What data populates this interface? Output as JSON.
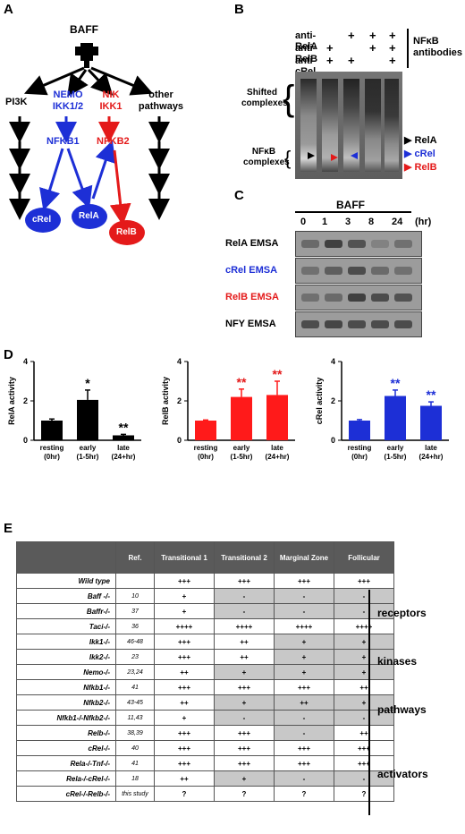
{
  "panels": {
    "A": "A",
    "B": "B",
    "C": "C",
    "D": "D",
    "E": "E"
  },
  "pathway": {
    "baff": "BAFF",
    "pi3k": "PI3K",
    "nemo": "NEMO",
    "ikk12": "IKK1/2",
    "nik": "NIK",
    "ikk1": "IKK1",
    "other1": "other",
    "other2": "pathways",
    "nfkb1": "NFKB1",
    "nfkb2": "NFKB2",
    "crel": "cRel",
    "rela": "RelA",
    "relb": "RelB",
    "colors": {
      "blue": "#1d2fd6",
      "red": "#e41a1a",
      "black": "#000000"
    }
  },
  "supershift": {
    "rows": [
      {
        "label": "anti-RelA",
        "marks": [
          "",
          "",
          "+",
          "+",
          "+"
        ]
      },
      {
        "label": "anti-RelB",
        "marks": [
          "",
          "+",
          "",
          "+",
          "+"
        ]
      },
      {
        "label": "anti-cRel",
        "marks": [
          "",
          "+",
          "+",
          "",
          "+"
        ]
      }
    ],
    "group_label_1": "NFκB",
    "group_label_2": "antibodies",
    "shifted_1": "Shifted",
    "shifted_2": "complexes",
    "nfkb_1": "NFκB",
    "nfkb_2": "complexes",
    "legend": [
      {
        "label": "RelA",
        "color": "#000000"
      },
      {
        "label": "cRel",
        "color": "#1d2fd6"
      },
      {
        "label": "RelB",
        "color": "#e41a1a"
      }
    ]
  },
  "emsa": {
    "treatment": "BAFF",
    "timepoints": [
      "0",
      "1",
      "3",
      "8",
      "24"
    ],
    "unit": "(hr)",
    "rows": [
      {
        "name": "RelA",
        "suffix": "EMSA",
        "color": "#000000"
      },
      {
        "name": "cRel",
        "suffix": "EMSA",
        "color": "#1d2fd6"
      },
      {
        "name": "RelB",
        "suffix": "EMSA",
        "color": "#e41a1a"
      },
      {
        "name": "NFY",
        "suffix": "EMSA",
        "color": "#000000"
      }
    ]
  },
  "chart_data": [
    {
      "type": "bar",
      "ylabel": "RelA activity",
      "ylim": [
        0,
        4
      ],
      "yticks": [
        "0",
        "2",
        "4"
      ],
      "categories": [
        "resting (0hr)",
        "early (1-5hr)",
        "late (24+hr)"
      ],
      "cat_lines": [
        [
          "resting",
          "(0hr)"
        ],
        [
          "early",
          "(1-5hr)"
        ],
        [
          "late",
          "(24+hr)"
        ]
      ],
      "values": [
        1.0,
        2.05,
        0.25
      ],
      "errors": [
        0.08,
        0.5,
        0.05
      ],
      "sig": [
        "",
        "*",
        "**"
      ],
      "color": "#000000",
      "sig_color": "#000000"
    },
    {
      "type": "bar",
      "ylabel": "RelB activity",
      "ylim": [
        0,
        4
      ],
      "yticks": [
        "0",
        "2",
        "4"
      ],
      "categories": [
        "resting (0hr)",
        "early (1-5hr)",
        "late (24+hr)"
      ],
      "cat_lines": [
        [
          "resting",
          "(0hr)"
        ],
        [
          "early",
          "(1-5hr)"
        ],
        [
          "late",
          "(24+hr)"
        ]
      ],
      "values": [
        1.0,
        2.2,
        2.3
      ],
      "errors": [
        0.03,
        0.4,
        0.7
      ],
      "sig": [
        "",
        "**",
        "**"
      ],
      "color": "#ff1a1a",
      "sig_color": "#e41a1a"
    },
    {
      "type": "bar",
      "ylabel": "cRel activity",
      "ylim": [
        0,
        4
      ],
      "yticks": [
        "0",
        "2",
        "4"
      ],
      "categories": [
        "resting (0hr)",
        "early (1-5hr)",
        "late (24+hr)"
      ],
      "cat_lines": [
        [
          "resting",
          "(0hr)"
        ],
        [
          "early",
          "(1-5hr)"
        ],
        [
          "late",
          "(24+hr)"
        ]
      ],
      "values": [
        1.0,
        2.25,
        1.75
      ],
      "errors": [
        0.05,
        0.3,
        0.2
      ],
      "sig": [
        "",
        "**",
        "**"
      ],
      "color": "#1d2fd6",
      "sig_color": "#1d2fd6"
    }
  ],
  "table": {
    "headers": [
      "",
      "Ref.",
      "Transitional 1",
      "Transitional 2",
      "Marginal Zone",
      "Follicular"
    ],
    "rows": [
      {
        "gene": "Wild type",
        "ref": "",
        "cells": [
          "+++",
          "+++",
          "+++",
          "+++"
        ],
        "shade": [
          0,
          0,
          0,
          0
        ]
      },
      {
        "gene": "Baff -/-",
        "ref": "10",
        "cells": [
          "+",
          "-",
          "-",
          "-"
        ],
        "shade": [
          0,
          1,
          1,
          1
        ]
      },
      {
        "gene": "Baffr-/-",
        "ref": "37",
        "cells": [
          "+",
          "-",
          "-",
          "-"
        ],
        "shade": [
          0,
          1,
          1,
          1
        ]
      },
      {
        "gene": "Taci-/-",
        "ref": "36",
        "cells": [
          "++++",
          "++++",
          "++++",
          "++++"
        ],
        "shade": [
          0,
          0,
          0,
          0
        ]
      },
      {
        "gene": "Ikk1-/-",
        "ref": "46-48",
        "cells": [
          "+++",
          "++",
          "+",
          "+"
        ],
        "shade": [
          0,
          0,
          1,
          1
        ]
      },
      {
        "gene": "Ikk2-/-",
        "ref": "23",
        "cells": [
          "+++",
          "++",
          "+",
          "+"
        ],
        "shade": [
          0,
          0,
          1,
          1
        ]
      },
      {
        "gene": "Nemo-/-",
        "ref": "23,24",
        "cells": [
          "++",
          "+",
          "+",
          "+"
        ],
        "shade": [
          0,
          1,
          1,
          1
        ]
      },
      {
        "gene": "Nfkb1-/-",
        "ref": "41",
        "cells": [
          "+++",
          "+++",
          "+++",
          "++"
        ],
        "shade": [
          0,
          0,
          0,
          0
        ]
      },
      {
        "gene": "Nfkb2-/-",
        "ref": "43-45",
        "cells": [
          "++",
          "+",
          "++",
          "+"
        ],
        "shade": [
          0,
          1,
          1,
          1
        ]
      },
      {
        "gene": "Nfkb1-/-Nfkb2-/-",
        "ref": "11,43",
        "cells": [
          "+",
          "-",
          "-",
          "-"
        ],
        "shade": [
          0,
          1,
          1,
          1
        ]
      },
      {
        "gene": "Relb-/-",
        "ref": "38,39",
        "cells": [
          "+++",
          "+++",
          "-",
          "++"
        ],
        "shade": [
          0,
          0,
          1,
          0
        ]
      },
      {
        "gene": "cRel-/-",
        "ref": "40",
        "cells": [
          "+++",
          "+++",
          "+++",
          "+++"
        ],
        "shade": [
          0,
          0,
          0,
          0
        ]
      },
      {
        "gene": "Rela-/-Tnf-/-",
        "ref": "41",
        "cells": [
          "+++",
          "+++",
          "+++",
          "+++"
        ],
        "shade": [
          0,
          0,
          0,
          0
        ]
      },
      {
        "gene": "Rela-/-cRel-/-",
        "ref": "18",
        "cells": [
          "++",
          "+",
          "-",
          "-"
        ],
        "shade": [
          0,
          1,
          1,
          1
        ]
      },
      {
        "gene": "cRel-/-Relb-/-",
        "ref": "this study",
        "cells": [
          "?",
          "?",
          "?",
          "?"
        ],
        "shade": [
          0,
          0,
          0,
          0
        ]
      }
    ],
    "groups": [
      "receptors",
      "kinases",
      "pathways",
      "activators"
    ]
  }
}
